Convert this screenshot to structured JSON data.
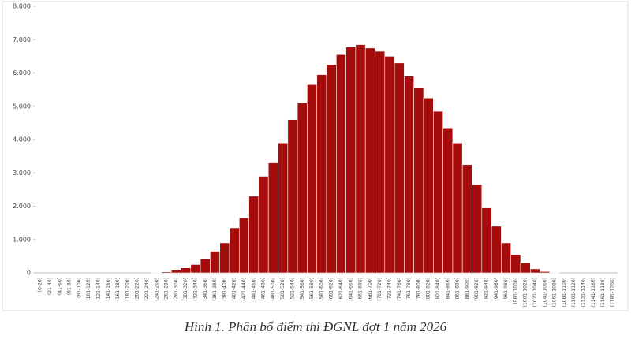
{
  "chart_data": {
    "type": "bar",
    "caption": "Hình 1. Phân bổ điểm thi ĐGNL đợt 1 năm 2026",
    "categories": [
      "(0-20]",
      "(21-40]",
      "(41-60]",
      "(61-80]",
      "(81-100]",
      "(101-120]",
      "(121-140]",
      "(141-160]",
      "(161-180]",
      "(181-200]",
      "(201-220]",
      "(221-240]",
      "(241-260]",
      "(261-280]",
      "(281-300]",
      "(301-320]",
      "(321-340]",
      "(341-360]",
      "(361-380]",
      "(381-400]",
      "(401-420]",
      "(421-440]",
      "(441-460]",
      "(461-480]",
      "(481-500]",
      "(501-520]",
      "(521-540]",
      "(541-560]",
      "(561-580]",
      "(581-600]",
      "(601-620]",
      "(621-640]",
      "(641-660]",
      "(661-680]",
      "(681-700]",
      "(701-720]",
      "(721-740]",
      "(741-760]",
      "(761-780]",
      "(781-800]",
      "(801-820]",
      "(821-840]",
      "(841-860]",
      "(861-880]",
      "(881-900]",
      "(901-920]",
      "(921-940]",
      "(941-960]",
      "(961-980]",
      "(981-1000]",
      "(1001-1020]",
      "(1021-1040]",
      "(1041-1060]",
      "(1061-1080]",
      "(1081-1100]",
      "(1101-1120]",
      "(1121-1140]",
      "(1141-1160]",
      "(1161-1180]",
      "(1181-1200]"
    ],
    "values": [
      0,
      0,
      0,
      0,
      0,
      0,
      0,
      0,
      0,
      0,
      0,
      0,
      10,
      30,
      80,
      150,
      250,
      420,
      650,
      900,
      1350,
      1650,
      2300,
      2900,
      3300,
      3900,
      4600,
      5100,
      5650,
      5950,
      6250,
      6550,
      6780,
      6850,
      6750,
      6650,
      6500,
      6300,
      5900,
      5550,
      5250,
      4850,
      4350,
      3900,
      3250,
      2650,
      1950,
      1400,
      900,
      550,
      300,
      120,
      40,
      10,
      0,
      0,
      0,
      0,
      0,
      0
    ],
    "color": "#a50d0d",
    "ylim": [
      0,
      8000
    ],
    "yticks": [
      0,
      {
        "value": 1000,
        "label": "1.000"
      },
      {
        "value": 2000,
        "label": "2.000"
      },
      {
        "value": 3000,
        "label": "3.000"
      },
      {
        "value": 4000,
        "label": "4.000"
      },
      {
        "value": 5000,
        "label": "5.000"
      },
      {
        "value": 6000,
        "label": "6.000"
      },
      {
        "value": 7000,
        "label": "7.000"
      },
      {
        "value": 8000,
        "label": "8.000"
      }
    ],
    "grid": false
  }
}
